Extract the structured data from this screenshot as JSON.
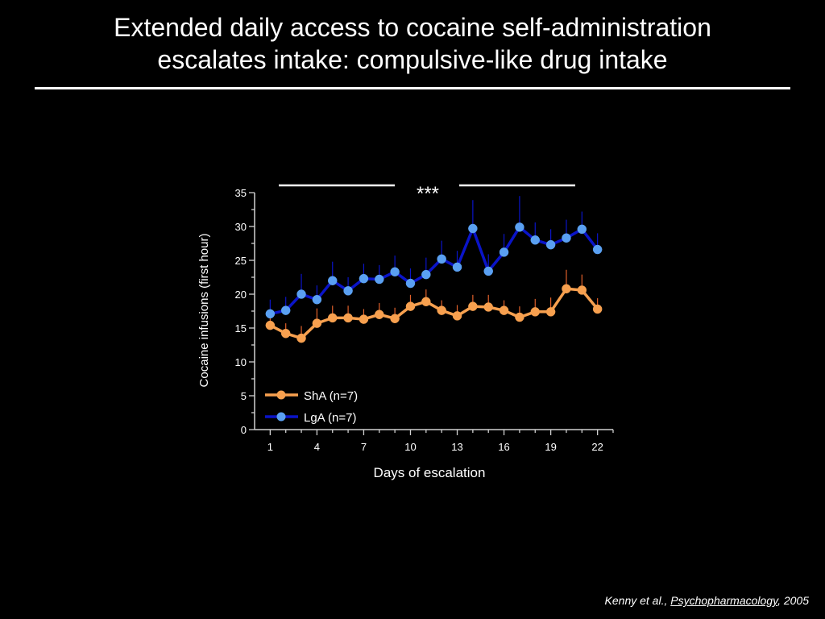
{
  "slide": {
    "title_line1": "Extended daily access to cocaine self-administration",
    "title_line2": "escalates intake: compulsive-like drug intake",
    "citation_authors": "Kenny et al., ",
    "citation_journal": "Psychopharmacology",
    "citation_year": ", 2005"
  },
  "colors": {
    "background": "#000000",
    "text": "#ffffff",
    "sha_line": "#f7a04f",
    "sha_error": "#e0602a",
    "lga_line": "#0a14c8",
    "lga_marker": "#5aa0f2"
  },
  "chart_data": {
    "type": "line",
    "xlabel": "Days of escalation",
    "ylabel": "Cocaine infusions (first hour)",
    "xlim": [
      0,
      23
    ],
    "ylim": [
      0,
      35
    ],
    "x_ticks": [
      1,
      4,
      7,
      10,
      13,
      16,
      19,
      22
    ],
    "y_ticks": [
      0,
      5,
      10,
      15,
      20,
      25,
      30,
      35
    ],
    "significance_label": "***",
    "legend_position": "bottom-left",
    "x": [
      1,
      2,
      3,
      4,
      5,
      6,
      7,
      8,
      9,
      10,
      11,
      12,
      13,
      14,
      15,
      16,
      17,
      18,
      19,
      20,
      21,
      22
    ],
    "series": [
      {
        "name": "ShA (n=7)",
        "color": "#f7a04f",
        "values": [
          15.4,
          14.2,
          13.5,
          15.7,
          16.5,
          16.5,
          16.3,
          17.0,
          16.4,
          18.2,
          18.9,
          17.6,
          16.8,
          18.2,
          18.1,
          17.6,
          16.6,
          17.4,
          17.4,
          20.8,
          20.6,
          17.8
        ],
        "errors": [
          1.3,
          1.5,
          1.8,
          2.2,
          1.8,
          1.8,
          1.5,
          1.7,
          1.6,
          1.7,
          1.8,
          1.5,
          1.6,
          1.7,
          1.8,
          1.5,
          1.6,
          1.9,
          2.1,
          2.8,
          2.3,
          1.6
        ]
      },
      {
        "name": "LgA (n=7)",
        "color": "#5aa0f2",
        "values": [
          17.1,
          17.6,
          20.0,
          19.2,
          22.0,
          20.5,
          22.3,
          22.2,
          23.3,
          21.6,
          22.9,
          25.2,
          24.0,
          29.7,
          23.4,
          26.2,
          29.9,
          28.0,
          27.3,
          28.3,
          29.6,
          26.6
        ],
        "errors": [
          2.1,
          2.0,
          3.0,
          2.1,
          2.8,
          2.0,
          2.2,
          2.1,
          2.4,
          2.2,
          2.5,
          2.7,
          2.4,
          4.2,
          2.5,
          2.7,
          4.6,
          2.6,
          2.3,
          2.7,
          2.6,
          2.4
        ]
      }
    ]
  }
}
